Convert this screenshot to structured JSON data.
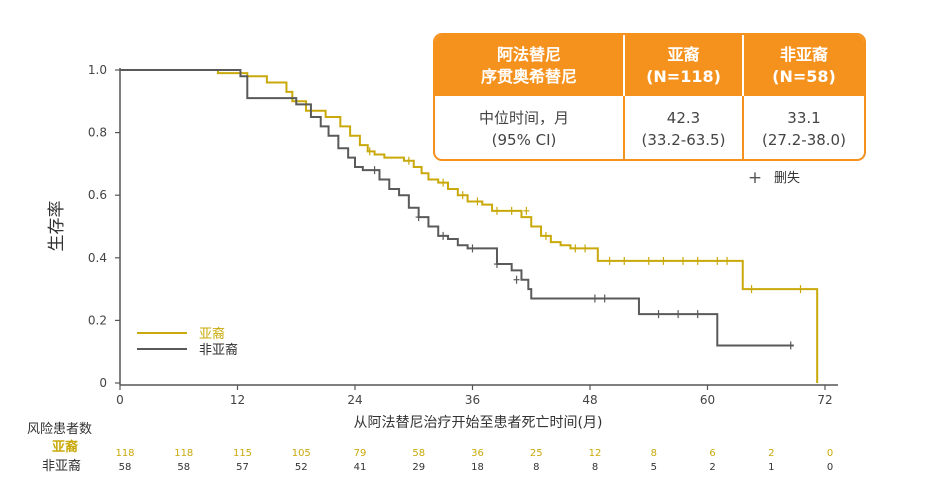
{
  "colors": {
    "yana": "#C9A90A",
    "non_yana": "#5A5A5A",
    "accent": "#F5921E",
    "axis": "#555555"
  },
  "median_table": {
    "header": {
      "col0_line1": "阿法替尼",
      "col0_line2": "序贯奥希替尼",
      "col1_line1": "亚裔",
      "col1_line2": "(N=118)",
      "col2_line1": "非亚裔",
      "col2_line2": "(N=58)"
    },
    "row": {
      "label_line1": "中位时间，月",
      "label_line2": "(95% CI)",
      "yana_value": "42.3",
      "yana_ci": "(33.2-63.5)",
      "non_yana_value": "33.1",
      "non_yana_ci": "(27.2-38.0)"
    }
  },
  "censor_legend": {
    "symbol": "+",
    "label": "删失"
  },
  "legend": {
    "yana": "亚裔",
    "non_yana": "非亚裔"
  },
  "risk_table": {
    "title": "风险患者数",
    "rows": [
      {
        "label": "亚裔",
        "series": "yana",
        "values": [
          "118",
          "118",
          "115",
          "105",
          "79",
          "58",
          "36",
          "25",
          "12",
          "8",
          "6",
          "2",
          "0"
        ]
      },
      {
        "label": "非亚裔",
        "series": "non_yana",
        "values": [
          "58",
          "58",
          "57",
          "52",
          "41",
          "29",
          "18",
          "8",
          "8",
          "5",
          "2",
          "1",
          "0"
        ]
      }
    ]
  },
  "chart_data": {
    "type": "line",
    "subtype": "kaplan-meier step",
    "xlabel": "从阿法替尼治疗开始至患者死亡时间(月)",
    "ylabel": "生存率",
    "xlim": [
      0,
      72
    ],
    "ylim": [
      0,
      1.0
    ],
    "x_ticks": [
      0,
      12,
      24,
      36,
      48,
      60,
      72
    ],
    "y_ticks": [
      0,
      0.2,
      0.4,
      0.6,
      0.8,
      1.0
    ],
    "y_tick_labels": [
      "0",
      "0.2",
      "0.4",
      "0.6",
      "0.8",
      "1.0"
    ],
    "risk_table_times": [
      0,
      6,
      12,
      18,
      24,
      30,
      36,
      42,
      48,
      54,
      60,
      66,
      72
    ],
    "grid": false,
    "legend_position": "bottom-left",
    "series": [
      {
        "name": "亚裔",
        "key": "yana",
        "steps": [
          [
            0,
            1.0
          ],
          [
            10,
            0.99
          ],
          [
            13,
            0.98
          ],
          [
            15,
            0.96
          ],
          [
            17,
            0.93
          ],
          [
            17.6,
            0.9
          ],
          [
            19,
            0.87
          ],
          [
            21,
            0.85
          ],
          [
            22.5,
            0.82
          ],
          [
            23.5,
            0.79
          ],
          [
            24.5,
            0.76
          ],
          [
            25.3,
            0.74
          ],
          [
            26,
            0.73
          ],
          [
            27,
            0.72
          ],
          [
            29,
            0.71
          ],
          [
            30,
            0.69
          ],
          [
            30.8,
            0.67
          ],
          [
            31.5,
            0.65
          ],
          [
            32.5,
            0.64
          ],
          [
            33.5,
            0.62
          ],
          [
            34.5,
            0.6
          ],
          [
            35.5,
            0.58
          ],
          [
            37,
            0.57
          ],
          [
            38,
            0.55
          ],
          [
            39,
            0.55
          ],
          [
            41,
            0.53
          ],
          [
            42,
            0.5
          ],
          [
            43,
            0.47
          ],
          [
            44,
            0.45
          ],
          [
            45,
            0.44
          ],
          [
            46,
            0.43
          ],
          [
            48,
            0.43
          ],
          [
            48.8,
            0.39
          ],
          [
            63.6,
            0.39
          ],
          [
            63.6,
            0.3
          ],
          [
            71,
            0.3
          ],
          [
            71.2,
            0.0
          ]
        ],
        "censored": [
          [
            25.5,
            0.74
          ],
          [
            29.5,
            0.71
          ],
          [
            33,
            0.64
          ],
          [
            35,
            0.6
          ],
          [
            36.5,
            0.58
          ],
          [
            38.5,
            0.55
          ],
          [
            40,
            0.55
          ],
          [
            41.5,
            0.55
          ],
          [
            43.5,
            0.47
          ],
          [
            46.5,
            0.43
          ],
          [
            47.5,
            0.43
          ],
          [
            50,
            0.39
          ],
          [
            51.5,
            0.39
          ],
          [
            54,
            0.39
          ],
          [
            55.5,
            0.39
          ],
          [
            57.5,
            0.39
          ],
          [
            59,
            0.39
          ],
          [
            61,
            0.39
          ],
          [
            62,
            0.39
          ],
          [
            64.5,
            0.3
          ],
          [
            69.5,
            0.3
          ]
        ]
      },
      {
        "name": "非亚裔",
        "key": "non_yana",
        "steps": [
          [
            0,
            1.0
          ],
          [
            12,
            1.0
          ],
          [
            12.3,
            0.98
          ],
          [
            13,
            0.91
          ],
          [
            18,
            0.89
          ],
          [
            19.5,
            0.85
          ],
          [
            20.5,
            0.82
          ],
          [
            21.3,
            0.79
          ],
          [
            22.3,
            0.75
          ],
          [
            23.3,
            0.72
          ],
          [
            24,
            0.69
          ],
          [
            24.8,
            0.68
          ],
          [
            26.5,
            0.65
          ],
          [
            27.5,
            0.62
          ],
          [
            28.5,
            0.6
          ],
          [
            29.5,
            0.56
          ],
          [
            30.5,
            0.53
          ],
          [
            31.5,
            0.5
          ],
          [
            32.5,
            0.47
          ],
          [
            33.5,
            0.46
          ],
          [
            34.5,
            0.44
          ],
          [
            35.5,
            0.43
          ],
          [
            38.5,
            0.38
          ],
          [
            40,
            0.36
          ],
          [
            41,
            0.33
          ],
          [
            41.7,
            0.3
          ],
          [
            42,
            0.27
          ],
          [
            53,
            0.27
          ],
          [
            53,
            0.22
          ],
          [
            61,
            0.22
          ],
          [
            61,
            0.12
          ],
          [
            68.8,
            0.12
          ]
        ],
        "censored": [
          [
            26,
            0.68
          ],
          [
            30.5,
            0.53
          ],
          [
            33,
            0.47
          ],
          [
            36,
            0.43
          ],
          [
            38.5,
            0.38
          ],
          [
            40.5,
            0.33
          ],
          [
            48.5,
            0.27
          ],
          [
            49.5,
            0.27
          ],
          [
            55,
            0.22
          ],
          [
            57,
            0.22
          ],
          [
            59,
            0.22
          ],
          [
            68.5,
            0.12
          ]
        ]
      }
    ]
  }
}
